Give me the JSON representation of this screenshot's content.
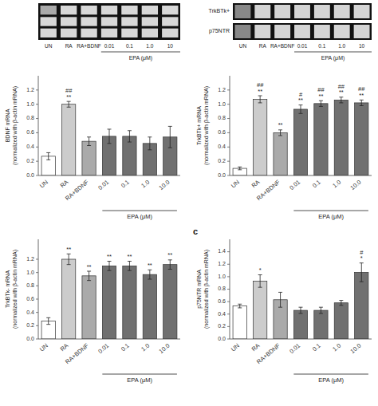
{
  "chart_data": [
    {
      "type": "image",
      "categories": [
        "UN",
        "RA",
        "RA+BDNF",
        "0.01",
        "0.1",
        "1.0",
        "10"
      ],
      "xlabel": "EPA (μM)"
    },
    {
      "type": "image",
      "categories": [
        "UN",
        "RA",
        "RA+BDNF",
        "0.01",
        "0.1",
        "1.0",
        "10"
      ],
      "xlabel": "EPA (μM)",
      "annotations": [
        "TrkBTk+",
        "p75NTR"
      ]
    },
    {
      "type": "bar",
      "categories": [
        "UN",
        "RA",
        "RA+BDNF",
        "0.01",
        "0.1",
        "1.0",
        "10.0"
      ],
      "values": [
        0.27,
        1.0,
        0.48,
        0.55,
        0.55,
        0.45,
        0.54
      ],
      "errors": [
        0.05,
        0.04,
        0.06,
        0.1,
        0.08,
        0.09,
        0.15
      ],
      "colors": [
        "#ffffff",
        "#cccccc",
        "#aaaaaa",
        "#707070",
        "#707070",
        "#707070",
        "#707070"
      ],
      "ylabel": "BDNF mRNA\n(normalized with β-actin mRNA)",
      "xlabel": "EPA (μM)",
      "ylim": [
        0,
        1.4
      ],
      "yticks": [
        {
          "value": 0,
          "label": "0.0"
        },
        0.2,
        0.4,
        0.6,
        0.8,
        {
          "value": 1,
          "label": "1.0"
        },
        1.2
      ],
      "annotations": [
        null,
        "##\n**",
        null,
        null,
        null,
        null,
        null
      ]
    },
    {
      "type": "bar",
      "categories": [
        "UN",
        "RA",
        "RA+BDNF",
        "0.01",
        "0.1",
        "1.0",
        "10.0"
      ],
      "values": [
        0.1,
        1.07,
        0.6,
        0.93,
        1.01,
        1.06,
        1.02
      ],
      "errors": [
        0.02,
        0.05,
        0.04,
        0.06,
        0.04,
        0.04,
        0.04
      ],
      "colors": [
        "#ffffff",
        "#cccccc",
        "#aaaaaa",
        "#707070",
        "#707070",
        "#707070",
        "#707070"
      ],
      "ylabel": "TrkBTk+ mRNA\n(normalized with β-actin mRNA)",
      "xlabel": "EPA (μM)",
      "ylim": [
        0,
        1.4
      ],
      "yticks": [
        {
          "value": 0,
          "label": "0.0"
        },
        0.2,
        0.4,
        0.6,
        0.8,
        {
          "value": 1,
          "label": "1.0"
        },
        1.2
      ],
      "annotations": [
        null,
        "##\n**",
        "**",
        "#\n**",
        "##\n**",
        "##\n**",
        "##\n**"
      ]
    },
    {
      "type": "bar",
      "categories": [
        "UN",
        "RA",
        "RA+BDNF",
        "0.01",
        "0.1",
        "1.0",
        "10.0"
      ],
      "values": [
        0.27,
        1.2,
        0.95,
        1.1,
        1.1,
        0.97,
        1.12
      ],
      "errors": [
        0.05,
        0.08,
        0.07,
        0.07,
        0.07,
        0.07,
        0.07
      ],
      "colors": [
        "#ffffff",
        "#cccccc",
        "#aaaaaa",
        "#707070",
        "#707070",
        "#707070",
        "#707070"
      ],
      "ylabel": "TrkBTk- mRNA\n(normalized with β-actin mRNA)",
      "xlabel": "EPA (μM)",
      "ylim": [
        0,
        1.5
      ],
      "yticks": [
        {
          "value": 0,
          "label": "0.0"
        },
        0.2,
        0.4,
        0.6,
        0.8,
        {
          "value": 1,
          "label": "1.0"
        },
        1.2
      ],
      "annotations": [
        null,
        "**",
        "**",
        "**",
        "**",
        "**",
        "**"
      ]
    },
    {
      "type": "bar",
      "title": "c",
      "categories": [
        "UN",
        "RA",
        "RA+BDNF",
        "0.01",
        "0.1",
        "1.0",
        "10.0"
      ],
      "values": [
        0.53,
        0.93,
        0.63,
        0.46,
        0.46,
        0.58,
        1.07
      ],
      "errors": [
        0.03,
        0.1,
        0.12,
        0.05,
        0.05,
        0.04,
        0.15
      ],
      "colors": [
        "#ffffff",
        "#cccccc",
        "#aaaaaa",
        "#707070",
        "#707070",
        "#707070",
        "#707070"
      ],
      "ylabel": "p75NTR mRNA\n(normalized with β-actin mRNA)",
      "xlabel": "EPA (μM)",
      "ylim": [
        0,
        1.6
      ],
      "yticks": [
        {
          "value": 0,
          "label": "0.0"
        },
        0.2,
        0.4,
        0.6,
        0.8,
        {
          "value": 1,
          "label": "1.0"
        },
        1.2,
        1.4
      ],
      "annotations": [
        null,
        "*",
        null,
        null,
        null,
        null,
        "#\n*"
      ]
    }
  ]
}
